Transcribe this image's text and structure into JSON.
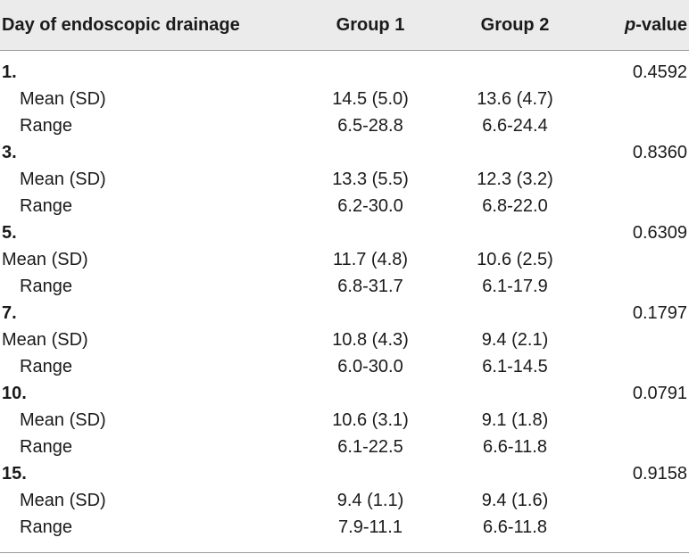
{
  "header": {
    "col1": "Day of endoscopic drainage",
    "col2": "Group 1",
    "col3": "Group 2",
    "col4_italic": "p",
    "col4_rest": "-value"
  },
  "groups": [
    {
      "day": "1.",
      "p_value": "0.4592",
      "rows": [
        {
          "label": "Mean (SD)",
          "indented": true,
          "g1": "14.5 (5.0)",
          "g2": "13.6 (4.7)"
        },
        {
          "label": "Range",
          "indented": true,
          "g1": "6.5-28.8",
          "g2": "6.6-24.4"
        }
      ]
    },
    {
      "day": "3.",
      "p_value": "0.8360",
      "rows": [
        {
          "label": "Mean (SD)",
          "indented": true,
          "g1": "13.3 (5.5)",
          "g2": "12.3 (3.2)"
        },
        {
          "label": "Range",
          "indented": true,
          "g1": "6.2-30.0",
          "g2": "6.8-22.0"
        }
      ]
    },
    {
      "day": "5.",
      "p_value": "0.6309",
      "rows": [
        {
          "label": "Mean (SD)",
          "indented": false,
          "g1": "11.7 (4.8)",
          "g2": "10.6 (2.5)"
        },
        {
          "label": "Range",
          "indented": true,
          "g1": "6.8-31.7",
          "g2": "6.1-17.9"
        }
      ]
    },
    {
      "day": "7.",
      "p_value": "0.1797",
      "rows": [
        {
          "label": "Mean (SD)",
          "indented": false,
          "g1": "10.8 (4.3)",
          "g2": "9.4 (2.1)"
        },
        {
          "label": "Range",
          "indented": true,
          "g1": "6.0-30.0",
          "g2": "6.1-14.5"
        }
      ]
    },
    {
      "day": "10.",
      "p_value": "0.0791",
      "rows": [
        {
          "label": "Mean (SD)",
          "indented": true,
          "g1": "10.6 (3.1)",
          "g2": "9.1 (1.8)"
        },
        {
          "label": "Range",
          "indented": true,
          "g1": "6.1-22.5",
          "g2": "6.6-11.8"
        }
      ]
    },
    {
      "day": "15.",
      "p_value": "0.9158",
      "rows": [
        {
          "label": "Mean (SD)",
          "indented": true,
          "g1": "9.4 (1.1)",
          "g2": "9.4 (1.6)"
        },
        {
          "label": "Range",
          "indented": true,
          "g1": "7.9-11.1",
          "g2": "6.6-11.8"
        }
      ]
    }
  ]
}
